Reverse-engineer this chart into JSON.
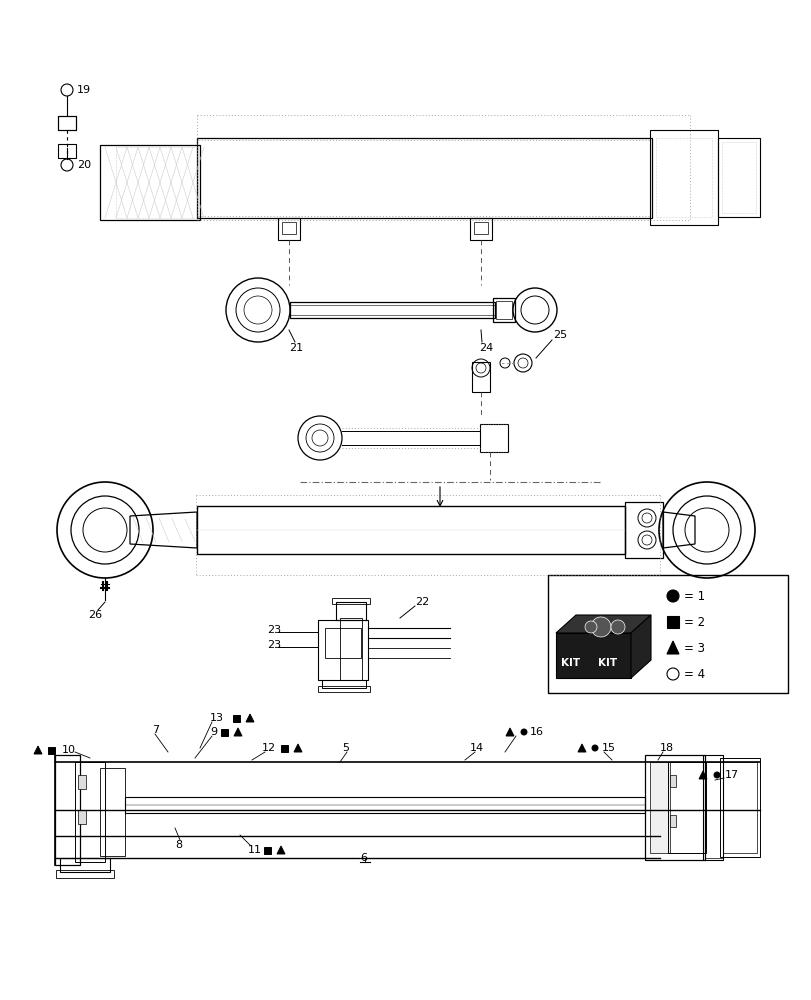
{
  "bg_color": "#ffffff",
  "line_color": "#000000",
  "figsize": [
    8.12,
    10.0
  ],
  "dpi": 100
}
